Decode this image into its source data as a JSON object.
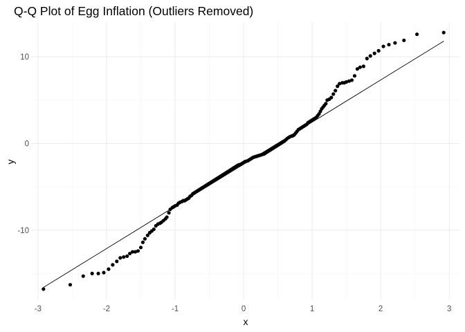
{
  "chart_data": {
    "type": "scatter",
    "title": "Q-Q Plot of Egg Inflation (Outliers Removed)",
    "xlabel": "x",
    "ylabel": "y",
    "xlim": [
      -3.1,
      3.15
    ],
    "ylim": [
      -18,
      14
    ],
    "x_ticks": [
      -3,
      -2,
      -1,
      0,
      1,
      2,
      3
    ],
    "x_tick_labels": [
      "-3",
      "-2",
      "-1",
      "0",
      "1",
      "2",
      "3"
    ],
    "y_ticks": [
      -10,
      0,
      10
    ],
    "y_tick_labels": [
      "-10",
      "0",
      "10"
    ],
    "grid": true,
    "point_color": "#000000",
    "reference_line": {
      "x": [
        -2.92,
        2.92
      ],
      "y": [
        -16.6,
        11.8
      ]
    },
    "points": [
      [
        -2.92,
        -16.8
      ],
      [
        -2.53,
        -16.3
      ],
      [
        -2.34,
        -15.3
      ],
      [
        -2.21,
        -15.0
      ],
      [
        -2.12,
        -15.0
      ],
      [
        -2.04,
        -14.9
      ],
      [
        -1.97,
        -14.5
      ],
      [
        -1.91,
        -14.0
      ],
      [
        -1.85,
        -13.6
      ],
      [
        -1.8,
        -13.2
      ],
      [
        -1.75,
        -13.1
      ],
      [
        -1.7,
        -13.0
      ],
      [
        -1.66,
        -12.7
      ],
      [
        -1.62,
        -12.5
      ],
      [
        -1.58,
        -12.5
      ],
      [
        -1.54,
        -12.4
      ],
      [
        -1.5,
        -12.0
      ],
      [
        -1.47,
        -11.4
      ],
      [
        -1.44,
        -11.0
      ],
      [
        -1.4,
        -10.6
      ],
      [
        -1.37,
        -10.3
      ],
      [
        -1.34,
        -10.1
      ],
      [
        -1.31,
        -9.9
      ],
      [
        -1.28,
        -9.5
      ],
      [
        -1.25,
        -9.3
      ],
      [
        -1.22,
        -9.2
      ],
      [
        -1.2,
        -9.1
      ],
      [
        -1.17,
        -8.9
      ],
      [
        -1.14,
        -8.7
      ],
      [
        -1.12,
        -8.5
      ],
      [
        -1.09,
        -8.0
      ],
      [
        -1.07,
        -7.6
      ],
      [
        -1.04,
        -7.4
      ],
      [
        -1.02,
        -7.3
      ],
      [
        -1.0,
        -7.2
      ],
      [
        -0.97,
        -7.1
      ],
      [
        -0.95,
        -6.9
      ],
      [
        -0.93,
        -6.8
      ],
      [
        -0.9,
        -6.7
      ],
      [
        -0.88,
        -6.6
      ],
      [
        -0.86,
        -6.6
      ],
      [
        -0.84,
        -6.5
      ],
      [
        -0.82,
        -6.4
      ],
      [
        -0.8,
        -6.3
      ],
      [
        -0.78,
        -6.1
      ],
      [
        -0.76,
        -6.0
      ],
      [
        -0.74,
        -5.8
      ],
      [
        -0.72,
        -5.7
      ],
      [
        -0.7,
        -5.6
      ],
      [
        -0.68,
        -5.5
      ],
      [
        -0.66,
        -5.4
      ],
      [
        -0.64,
        -5.3
      ],
      [
        -0.62,
        -5.2
      ],
      [
        -0.6,
        -5.1
      ],
      [
        -0.58,
        -5.0
      ],
      [
        -0.56,
        -4.9
      ],
      [
        -0.54,
        -4.8
      ],
      [
        -0.52,
        -4.7
      ],
      [
        -0.5,
        -4.6
      ],
      [
        -0.48,
        -4.5
      ],
      [
        -0.46,
        -4.4
      ],
      [
        -0.44,
        -4.3
      ],
      [
        -0.42,
        -4.2
      ],
      [
        -0.4,
        -4.1
      ],
      [
        -0.38,
        -4.0
      ],
      [
        -0.36,
        -3.9
      ],
      [
        -0.34,
        -3.8
      ],
      [
        -0.32,
        -3.7
      ],
      [
        -0.3,
        -3.6
      ],
      [
        -0.28,
        -3.5
      ],
      [
        -0.26,
        -3.4
      ],
      [
        -0.24,
        -3.3
      ],
      [
        -0.22,
        -3.2
      ],
      [
        -0.2,
        -3.1
      ],
      [
        -0.18,
        -3.0
      ],
      [
        -0.16,
        -2.9
      ],
      [
        -0.14,
        -2.8
      ],
      [
        -0.12,
        -2.7
      ],
      [
        -0.1,
        -2.6
      ],
      [
        -0.08,
        -2.5
      ],
      [
        -0.06,
        -2.45
      ],
      [
        -0.04,
        -2.4
      ],
      [
        -0.02,
        -2.3
      ],
      [
        0.0,
        -2.2
      ],
      [
        0.02,
        -2.1
      ],
      [
        0.04,
        -2.05
      ],
      [
        0.06,
        -2.0
      ],
      [
        0.08,
        -1.9
      ],
      [
        0.1,
        -1.8
      ],
      [
        0.12,
        -1.7
      ],
      [
        0.14,
        -1.6
      ],
      [
        0.16,
        -1.55
      ],
      [
        0.18,
        -1.5
      ],
      [
        0.2,
        -1.45
      ],
      [
        0.22,
        -1.4
      ],
      [
        0.24,
        -1.35
      ],
      [
        0.26,
        -1.3
      ],
      [
        0.28,
        -1.25
      ],
      [
        0.3,
        -1.2
      ],
      [
        0.32,
        -1.1
      ],
      [
        0.34,
        -1.0
      ],
      [
        0.36,
        -0.9
      ],
      [
        0.38,
        -0.8
      ],
      [
        0.4,
        -0.7
      ],
      [
        0.42,
        -0.6
      ],
      [
        0.44,
        -0.5
      ],
      [
        0.46,
        -0.4
      ],
      [
        0.48,
        -0.3
      ],
      [
        0.5,
        -0.2
      ],
      [
        0.52,
        -0.1
      ],
      [
        0.54,
        0.0
      ],
      [
        0.56,
        0.1
      ],
      [
        0.58,
        0.2
      ],
      [
        0.6,
        0.3
      ],
      [
        0.62,
        0.45
      ],
      [
        0.64,
        0.6
      ],
      [
        0.66,
        0.7
      ],
      [
        0.68,
        0.8
      ],
      [
        0.7,
        0.85
      ],
      [
        0.72,
        0.9
      ],
      [
        0.74,
        1.0
      ],
      [
        0.76,
        1.2
      ],
      [
        0.78,
        1.4
      ],
      [
        0.8,
        1.6
      ],
      [
        0.82,
        1.7
      ],
      [
        0.84,
        1.8
      ],
      [
        0.86,
        1.9
      ],
      [
        0.88,
        2.0
      ],
      [
        0.9,
        2.1
      ],
      [
        0.92,
        2.2
      ],
      [
        0.94,
        2.4
      ],
      [
        0.96,
        2.5
      ],
      [
        0.98,
        2.6
      ],
      [
        1.0,
        2.7
      ],
      [
        1.02,
        2.8
      ],
      [
        1.04,
        2.9
      ],
      [
        1.06,
        3.0
      ],
      [
        1.08,
        3.2
      ],
      [
        1.1,
        3.4
      ],
      [
        1.12,
        3.7
      ],
      [
        1.14,
        4.0
      ],
      [
        1.16,
        4.2
      ],
      [
        1.18,
        4.4
      ],
      [
        1.2,
        4.6
      ],
      [
        1.22,
        5.0
      ],
      [
        1.25,
        5.1
      ],
      [
        1.28,
        5.3
      ],
      [
        1.31,
        5.7
      ],
      [
        1.34,
        6.1
      ],
      [
        1.37,
        6.6
      ],
      [
        1.4,
        6.9
      ],
      [
        1.44,
        7.0
      ],
      [
        1.47,
        7.0
      ],
      [
        1.5,
        7.1
      ],
      [
        1.54,
        7.2
      ],
      [
        1.58,
        7.3
      ],
      [
        1.62,
        7.8
      ],
      [
        1.66,
        8.6
      ],
      [
        1.7,
        8.8
      ],
      [
        1.75,
        8.9
      ],
      [
        1.8,
        9.8
      ],
      [
        1.85,
        10.1
      ],
      [
        1.91,
        10.4
      ],
      [
        1.97,
        10.7
      ],
      [
        2.04,
        11.2
      ],
      [
        2.12,
        11.4
      ],
      [
        2.21,
        11.6
      ],
      [
        2.34,
        11.9
      ],
      [
        2.53,
        12.6
      ],
      [
        2.92,
        12.8
      ]
    ]
  }
}
